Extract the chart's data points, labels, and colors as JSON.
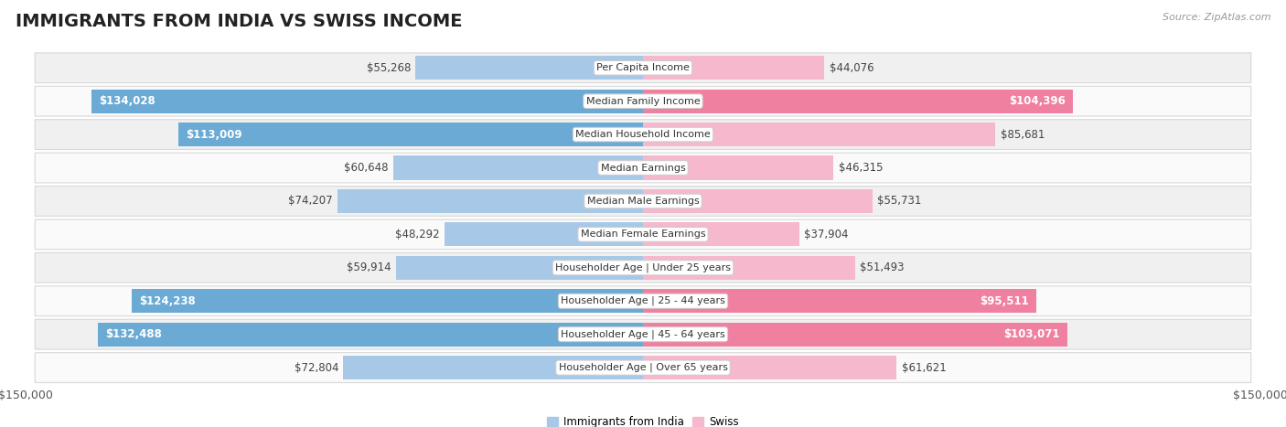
{
  "title": "IMMIGRANTS FROM INDIA VS SWISS INCOME",
  "source": "Source: ZipAtlas.com",
  "categories": [
    "Per Capita Income",
    "Median Family Income",
    "Median Household Income",
    "Median Earnings",
    "Median Male Earnings",
    "Median Female Earnings",
    "Householder Age | Under 25 years",
    "Householder Age | 25 - 44 years",
    "Householder Age | 45 - 64 years",
    "Householder Age | Over 65 years"
  ],
  "india_values": [
    55268,
    134028,
    113009,
    60648,
    74207,
    48292,
    59914,
    124238,
    132488,
    72804
  ],
  "swiss_values": [
    44076,
    104396,
    85681,
    46315,
    55731,
    37904,
    51493,
    95511,
    103071,
    61621
  ],
  "india_labels": [
    "$55,268",
    "$134,028",
    "$113,009",
    "$60,648",
    "$74,207",
    "$48,292",
    "$59,914",
    "$124,238",
    "$132,488",
    "$72,804"
  ],
  "swiss_labels": [
    "$44,076",
    "$104,396",
    "$85,681",
    "$46,315",
    "$55,731",
    "$37,904",
    "$51,493",
    "$95,511",
    "$103,071",
    "$61,621"
  ],
  "india_color_light": "#a8c8e8",
  "india_color_dark": "#6aaad4",
  "swiss_color_light": "#f5b8cc",
  "swiss_color_dark": "#f080a0",
  "max_value": 150000,
  "background_color": "#ffffff",
  "row_bg_even": "#f0f0f0",
  "row_bg_odd": "#fafafa",
  "row_border": "#d8d8d8",
  "legend_india": "Immigrants from India",
  "legend_swiss": "Swiss",
  "title_fontsize": 14,
  "label_fontsize": 8.5,
  "cat_fontsize": 8,
  "tick_fontsize": 9,
  "source_fontsize": 8,
  "inside_label_threshold": 95000
}
